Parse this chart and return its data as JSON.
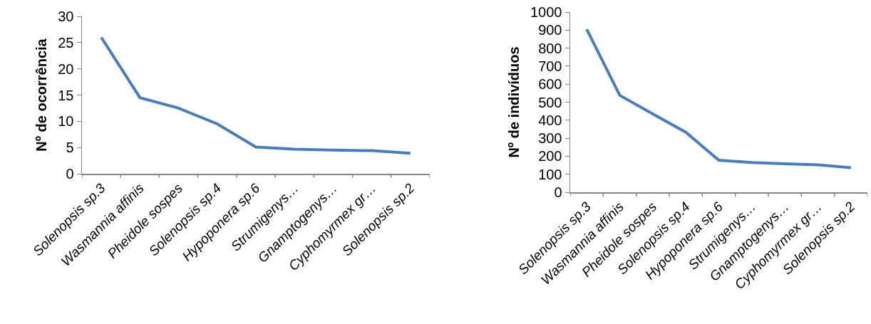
{
  "chart_data": [
    {
      "type": "line",
      "ylabel": "Nº de ocorrência",
      "categories": [
        "Solenopsis sp.3",
        "Wasmannia affinis",
        "Pheidole sospes",
        "Solenopsis sp.4",
        "Hypoponera sp.6",
        "Strumigenys…",
        "Gnamptogenys…",
        "Cyphomyrmex gr…",
        "Solenopsis sp.2"
      ],
      "series": [
        {
          "color": "#4a7ebb",
          "values": [
            26,
            14.5,
            12.5,
            9.5,
            5.1,
            4.7,
            4.5,
            4.4,
            3.9
          ]
        }
      ],
      "ylim": [
        0,
        30
      ],
      "yticks": [
        0,
        5,
        10,
        15,
        20,
        25,
        30
      ],
      "grid": false,
      "marker": "none",
      "line_style": "solid"
    },
    {
      "type": "line",
      "ylabel": "Nº de indivíduos",
      "categories": [
        "Solenopsis sp.3",
        "Wasmannia affinis",
        "Pheidole sospes",
        "Solenopsis sp.4",
        "Hypoponera sp.6",
        "Strumigenys…",
        "Gnamptogenys…",
        "Cyphomyrmex gr…",
        "Solenopsis sp.2"
      ],
      "series": [
        {
          "color": "#4a7ebb",
          "values": [
            905,
            538,
            435,
            333,
            178,
            165,
            158,
            152,
            136
          ]
        }
      ],
      "ylim": [
        0,
        1000
      ],
      "yticks": [
        0,
        100,
        200,
        300,
        400,
        500,
        600,
        700,
        800,
        900,
        1000
      ],
      "grid": false,
      "marker": "none",
      "line_style": "solid"
    }
  ]
}
